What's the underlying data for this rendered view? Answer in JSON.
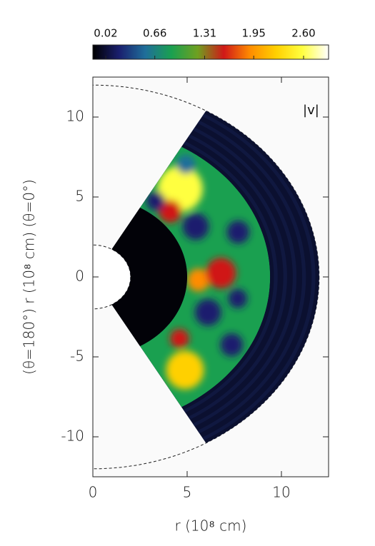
{
  "chart_data": {
    "type": "wedge-map",
    "annotation": "|v|",
    "xlabel": "r (10⁸ cm)",
    "ylabel": "(θ=180°) r (10⁸ cm) (θ=0°)",
    "xlim": [
      0,
      12.5
    ],
    "ylim": [
      -12.5,
      12.5
    ],
    "xticks": [
      0,
      5,
      10
    ],
    "yticks": [
      -10,
      -5,
      0,
      5,
      10
    ],
    "colorbar_ticks": [
      0.02,
      0.66,
      1.31,
      1.95,
      {
        "value": 2.6,
        "label": "2.60"
      }
    ],
    "colormap": [
      "#000000",
      "#1a1f6e",
      "#1f6e9a",
      "#1aa050",
      "#6fa020",
      "#d01818",
      "#ff8c00",
      "#ffd000",
      "#ffff40",
      "#ffffff"
    ]
  }
}
